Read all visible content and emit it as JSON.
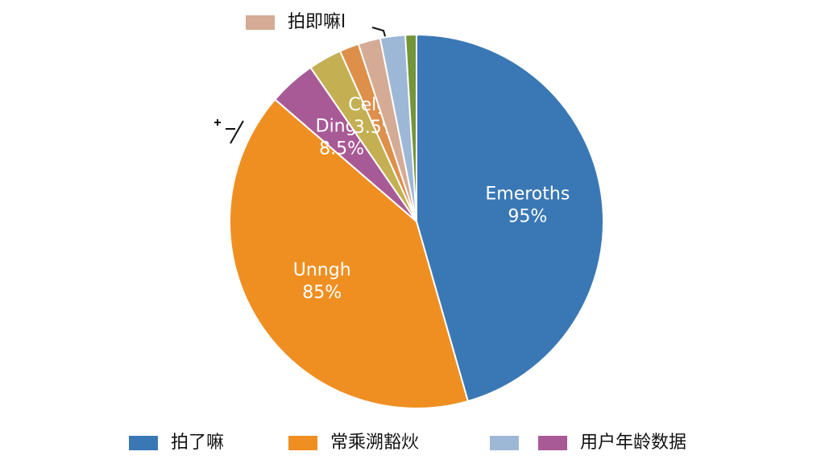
{
  "chart_data": {
    "type": "pie",
    "categories": [
      "Emeroths",
      "Unngh",
      "Dingh",
      null,
      "Celglu",
      null,
      null,
      null
    ],
    "values": [
      95,
      85,
      8.5,
      6,
      3.5,
      4,
      4.5,
      2
    ],
    "value_labels": [
      "95%",
      "85%",
      "8.5%",
      null,
      "3.5%",
      null,
      null,
      null
    ],
    "colors": [
      "#3a78b5",
      "#ef8f22",
      "#a85a96",
      "#c4b052",
      "#de8f4a",
      "#d5ab95",
      "#9db8d6",
      "#74953a"
    ],
    "legend": [
      {
        "name": "拍即嘛l",
        "color": "#d5ab95",
        "position": "top"
      },
      {
        "name": "拍了嘛",
        "color": "#3a78b5",
        "position": "bottom"
      },
      {
        "name": "常乘溯豁炏",
        "color": "#ef8f22",
        "position": "bottom"
      },
      {
        "name": null,
        "color": "#9db8d6",
        "position": "bottom"
      },
      {
        "name": "用户年龄数据",
        "color": "#a85a96",
        "position": "bottom"
      }
    ]
  }
}
